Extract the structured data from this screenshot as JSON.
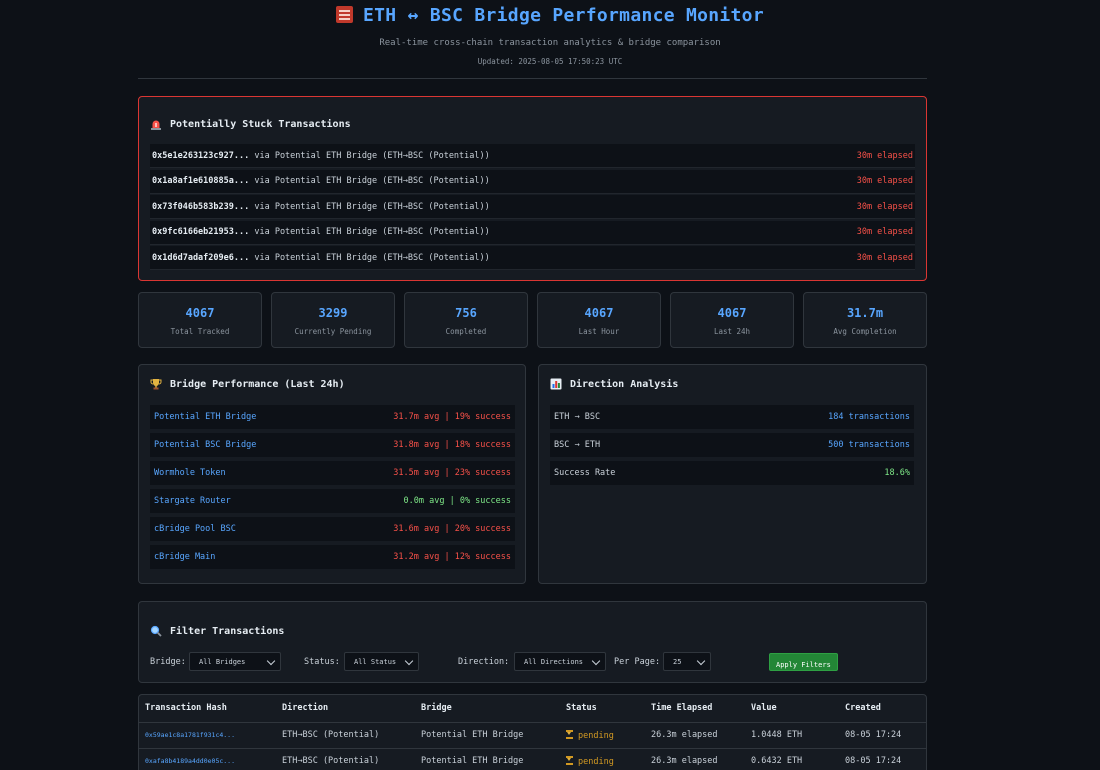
{
  "header": {
    "title": "ETH ↔ BSC Bridge Performance Monitor",
    "subtitle": "Real-time cross-chain transaction analytics & bridge comparison",
    "updated": "Updated: 2025-08-05 17:50:23 UTC"
  },
  "stuck": {
    "title": "Potentially Stuck Transactions",
    "items": [
      {
        "hash": "0x5e1e263123c927...",
        "via": " via Potential ETH Bridge (ETH→BSC (Potential))",
        "elapsed": "30m elapsed"
      },
      {
        "hash": "0x1a8af1e610885a...",
        "via": " via Potential ETH Bridge (ETH→BSC (Potential))",
        "elapsed": "30m elapsed"
      },
      {
        "hash": "0x73f046b583b239...",
        "via": " via Potential ETH Bridge (ETH→BSC (Potential))",
        "elapsed": "30m elapsed"
      },
      {
        "hash": "0x9fc6166eb21953...",
        "via": " via Potential ETH Bridge (ETH→BSC (Potential))",
        "elapsed": "30m elapsed"
      },
      {
        "hash": "0x1d6d7adaf209e6...",
        "via": " via Potential ETH Bridge (ETH→BSC (Potential))",
        "elapsed": "30m elapsed"
      }
    ]
  },
  "stats": [
    {
      "value": "4067",
      "label": "Total Tracked"
    },
    {
      "value": "3299",
      "label": "Currently Pending"
    },
    {
      "value": "756",
      "label": "Completed"
    },
    {
      "value": "4067",
      "label": "Last Hour"
    },
    {
      "value": "4067",
      "label": "Last 24h"
    },
    {
      "value": "31.7m",
      "label": "Avg Completion"
    }
  ],
  "bridge_performance": {
    "title": "Bridge Performance (Last 24h)",
    "rows": [
      {
        "name": "Potential ETH Bridge",
        "value": "31.7m avg | 19% success",
        "tone": "red"
      },
      {
        "name": "Potential BSC Bridge",
        "value": "31.8m avg | 18% success",
        "tone": "red"
      },
      {
        "name": "Wormhole Token",
        "value": "31.5m avg | 23% success",
        "tone": "red"
      },
      {
        "name": "Stargate Router",
        "value": "0.0m avg | 0% success",
        "tone": "green"
      },
      {
        "name": "cBridge Pool BSC",
        "value": "31.6m avg | 20% success",
        "tone": "red"
      },
      {
        "name": "cBridge Main",
        "value": "31.2m avg | 12% success",
        "tone": "red"
      }
    ]
  },
  "direction_analysis": {
    "title": "Direction Analysis",
    "rows": [
      {
        "name": "ETH → BSC",
        "value": "184 transactions",
        "tone": "blue"
      },
      {
        "name": "BSC → ETH",
        "value": "500 transactions",
        "tone": "blue"
      },
      {
        "name": "Success Rate",
        "value": "18.6%",
        "tone": "green"
      }
    ]
  },
  "filters": {
    "title": "Filter Transactions",
    "bridge_label": "Bridge:",
    "bridge_value": "All Bridges",
    "status_label": "Status:",
    "status_value": "All Status",
    "direction_label": "Direction:",
    "direction_value": "All Directions",
    "per_page_label": "Per Page:",
    "per_page_value": "25",
    "apply_label": "Apply Filters"
  },
  "table": {
    "columns": [
      "Transaction Hash",
      "Direction",
      "Bridge",
      "Status",
      "Time Elapsed",
      "Value",
      "Created"
    ],
    "rows": [
      {
        "hash": "0x59ae1c8a1781f931c4...",
        "direction": "ETH→BSC (Potential)",
        "bridge": "Potential ETH Bridge",
        "status": "pending",
        "elapsed": "26.3m elapsed",
        "value": "1.0448 ETH",
        "created": "08-05 17:24"
      },
      {
        "hash": "0xafa8b4189a4dd0e05c...",
        "direction": "ETH→BSC (Potential)",
        "bridge": "Potential ETH Bridge",
        "status": "pending",
        "elapsed": "26.3m elapsed",
        "value": "0.6432 ETH",
        "created": "08-05 17:24"
      }
    ]
  },
  "colors": {
    "background": "#0d1117",
    "panel": "#161b22",
    "accent": "#58a6ff",
    "danger": "#f85149",
    "success": "#7ee787",
    "warning": "#d29922",
    "button": "#238636"
  }
}
